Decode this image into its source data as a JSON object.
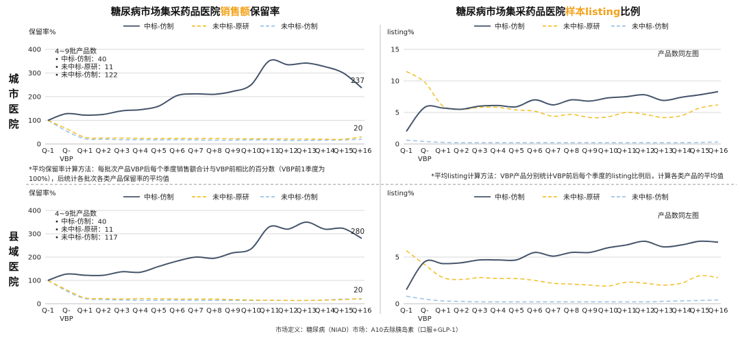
{
  "titles": {
    "left": {
      "pre": "糖尿病市场集采药品医院",
      "highlight": "销售额",
      "post": "保留率"
    },
    "right": {
      "pre": "糖尿病市场集采药品医院",
      "highlight": "样本listing",
      "post": "比例"
    }
  },
  "row_labels": {
    "top": "城市医院",
    "bottom": "县域医院"
  },
  "notes": {
    "left_line1": "*平均保留率计算方法：每批次产品VBP后每个季度销售额合计与VBP前相比的百分数（VBP前1季度为",
    "left_line2": "100%），后统计各批次各类产品保留率的平均值",
    "right": "*平均listing计算方法：VBP产品分别统计VBP前后每个季度的listing比例后，计算各类产品的平均值"
  },
  "footer": "市场定义：糖尿病（NIAD）市场：A10去除胰岛素（口服+GLP-1）",
  "colors": {
    "s1": "#44546a",
    "s2": "#f2c12e",
    "s3": "#9dc3e6",
    "grid": "#d9d9d9",
    "highlight": "#f2a21a"
  },
  "chart_data": [
    {
      "id": "top-left",
      "type": "line",
      "ylabel": "保留率%",
      "ylim": [
        0,
        400
      ],
      "yticks": [
        0,
        100,
        200,
        300,
        400
      ],
      "categories": [
        "Q-1",
        "Q-VBP",
        "Q+1",
        "Q+2",
        "Q+3",
        "Q+4",
        "Q+5",
        "Q+6",
        "Q+7",
        "Q+8",
        "Q+9",
        "Q+10",
        "Q+11",
        "Q+12",
        "Q+13",
        "Q+14",
        "Q+15",
        "Q+16"
      ],
      "tick_labels": [
        "Q-1",
        "Q-",
        "Q+1",
        "Q+2",
        "Q+3",
        "Q+4",
        "Q+5",
        "Q+6",
        "Q+7",
        "Q+8",
        "Q+9",
        "Q+10",
        "Q+11",
        "Q+12",
        "Q+13",
        "Q+14",
        "Q+15",
        "Q+16"
      ],
      "tick_labels_line2": [
        "",
        "VBP",
        "",
        "",
        "",
        "",
        "",
        "",
        "",
        "",
        "",
        "",
        "",
        "",
        "",
        "",
        "",
        ""
      ],
      "series": [
        {
          "name": "中标-仿制",
          "color": "#44546a",
          "dash": "solid",
          "values": [
            100,
            128,
            122,
            125,
            140,
            145,
            160,
            205,
            212,
            210,
            222,
            250,
            352,
            335,
            342,
            327,
            300,
            237
          ]
        },
        {
          "name": "未中标-原研",
          "color": "#f2c12e",
          "dash": "dash",
          "values": [
            100,
            65,
            28,
            25,
            25,
            24,
            23,
            24,
            23,
            23,
            22,
            22,
            22,
            21,
            21,
            20,
            20,
            30
          ]
        },
        {
          "name": "未中标-仿制",
          "color": "#9dc3e6",
          "dash": "dash",
          "values": [
            100,
            55,
            22,
            20,
            18,
            18,
            17,
            18,
            17,
            16,
            16,
            17,
            17,
            15,
            15,
            16,
            17,
            20
          ]
        }
      ],
      "end_labels": [
        "237",
        "20"
      ],
      "annotation": [
        "4~9批产品数",
        "• 中标-仿制：40",
        "• 未中标-原研：11",
        "• 未中标-仿制：122"
      ]
    },
    {
      "id": "top-right",
      "type": "line",
      "ylabel": "listing%",
      "ylim": [
        0,
        15
      ],
      "yticks": [
        0,
        5,
        10,
        15
      ],
      "categories": [
        "Q-1",
        "Q-VBP",
        "Q+1",
        "Q+2",
        "Q+3",
        "Q+4",
        "Q+5",
        "Q+6",
        "Q+7",
        "Q+8",
        "Q+9",
        "Q+10",
        "Q+11",
        "Q+12",
        "Q+13",
        "Q+14",
        "Q+15",
        "Q+16"
      ],
      "tick_labels": [
        "Q-1",
        "Q-",
        "Q+1",
        "Q+2",
        "Q+3",
        "Q+4",
        "Q+5",
        "Q+6",
        "Q+7",
        "Q+8",
        "Q+9",
        "Q+10",
        "Q+11",
        "Q+12",
        "Q+13",
        "Q+14",
        "Q+15",
        "Q+16"
      ],
      "tick_labels_line2": [
        "",
        "VBP",
        "",
        "",
        "",
        "",
        "",
        "",
        "",
        "",
        "",
        "",
        "",
        "",
        "",
        "",
        "",
        ""
      ],
      "series": [
        {
          "name": "中标-仿制",
          "color": "#44546a",
          "dash": "solid",
          "values": [
            2.0,
            5.8,
            5.7,
            5.5,
            6.0,
            6.1,
            5.9,
            7.0,
            6.2,
            7.0,
            6.8,
            7.3,
            7.5,
            7.8,
            6.9,
            7.4,
            7.8,
            8.3
          ]
        },
        {
          "name": "未中标-原研",
          "color": "#f2c12e",
          "dash": "dash",
          "values": [
            11.5,
            9.8,
            6.0,
            5.5,
            5.8,
            5.8,
            5.4,
            5.2,
            4.4,
            4.7,
            4.2,
            4.3,
            5.0,
            4.7,
            4.2,
            4.5,
            5.7,
            6.2
          ]
        },
        {
          "name": "未中标-仿制",
          "color": "#9dc3e6",
          "dash": "dash",
          "values": [
            0.6,
            0.4,
            0.25,
            0.2,
            0.2,
            0.2,
            0.2,
            0.2,
            0.2,
            0.2,
            0.2,
            0.2,
            0.2,
            0.2,
            0.2,
            0.2,
            0.25,
            0.3
          ]
        }
      ],
      "end_labels": [],
      "annotation": [
        "产品数同左图"
      ]
    },
    {
      "id": "bottom-left",
      "type": "line",
      "ylabel": "保留率%",
      "ylim": [
        0,
        400
      ],
      "yticks": [
        0,
        100,
        200,
        300,
        400
      ],
      "categories": [
        "Q-1",
        "Q-VBP",
        "Q+1",
        "Q+2",
        "Q+3",
        "Q+4",
        "Q+5",
        "Q+6",
        "Q+7",
        "Q+8",
        "Q+9",
        "Q+10",
        "Q+11",
        "Q+12",
        "Q+13",
        "Q+14",
        "Q+15",
        "Q+16"
      ],
      "tick_labels": [
        "Q-1",
        "Q-",
        "Q+1",
        "Q+2",
        "Q+3",
        "Q+4",
        "Q+5",
        "Q+6",
        "Q+7",
        "Q+8",
        "Q+9",
        "Q+10",
        "Q+11",
        "Q+12",
        "Q+13",
        "Q+14",
        "Q+15",
        "Q+16"
      ],
      "tick_labels_line2": [
        "",
        "VBP",
        "",
        "",
        "",
        "",
        "",
        "",
        "",
        "",
        "",
        "",
        "",
        "",
        "",
        "",
        "",
        ""
      ],
      "series": [
        {
          "name": "中标-仿制",
          "color": "#44546a",
          "dash": "solid",
          "values": [
            100,
            127,
            122,
            122,
            137,
            135,
            160,
            183,
            200,
            195,
            218,
            235,
            330,
            320,
            350,
            320,
            323,
            280
          ]
        },
        {
          "name": "未中标-原研",
          "color": "#f2c12e",
          "dash": "dash",
          "values": [
            100,
            60,
            25,
            22,
            20,
            22,
            21,
            20,
            20,
            20,
            18,
            16,
            15,
            14,
            14,
            15,
            18,
            22
          ]
        },
        {
          "name": "未中标-仿制",
          "color": "#9dc3e6",
          "dash": "dash",
          "values": [
            100,
            55,
            22,
            18,
            16,
            15,
            15,
            15,
            14,
            14,
            14,
            14,
            15,
            14,
            14,
            16,
            20,
            20
          ]
        }
      ],
      "end_labels": [
        "280",
        "20"
      ],
      "annotation": [
        "4~9批产品数",
        "• 中标-仿制：40",
        "• 未中标-原研：11",
        "• 未中标-仿制：117"
      ]
    },
    {
      "id": "bottom-right",
      "type": "line",
      "ylabel": "listing%",
      "ylim": [
        0,
        10
      ],
      "yticks": [
        0,
        5
      ],
      "categories": [
        "Q-1",
        "Q-VBP",
        "Q+1",
        "Q+2",
        "Q+3",
        "Q+4",
        "Q+5",
        "Q+6",
        "Q+7",
        "Q+8",
        "Q+9",
        "Q+10",
        "Q+11",
        "Q+12",
        "Q+13",
        "Q+14",
        "Q+15",
        "Q+16"
      ],
      "tick_labels": [
        "Q-1",
        "Q-",
        "Q+1",
        "Q+2",
        "Q+3",
        "Q+4",
        "Q+5",
        "Q+6",
        "Q+7",
        "Q+8",
        "Q+9",
        "Q+10",
        "Q+11",
        "Q+12",
        "Q+13",
        "Q+14",
        "Q+15",
        "Q+16"
      ],
      "tick_labels_line2": [
        "",
        "VBP",
        "",
        "",
        "",
        "",
        "",
        "",
        "",
        "",
        "",
        "",
        "",
        "",
        "",
        "",
        "",
        ""
      ],
      "series": [
        {
          "name": "中标-仿制",
          "color": "#44546a",
          "dash": "solid",
          "values": [
            1.5,
            4.5,
            4.3,
            4.4,
            4.7,
            4.7,
            4.7,
            5.5,
            5.1,
            5.5,
            5.5,
            6.0,
            6.3,
            6.7,
            6.1,
            6.3,
            6.7,
            6.6
          ]
        },
        {
          "name": "未中标-原研",
          "color": "#f2c12e",
          "dash": "dash",
          "values": [
            5.7,
            4.2,
            2.8,
            2.6,
            2.8,
            2.7,
            2.7,
            2.5,
            2.2,
            2.1,
            2.0,
            1.9,
            2.3,
            2.2,
            2.0,
            2.2,
            3.0,
            2.8
          ]
        },
        {
          "name": "未中标-仿制",
          "color": "#9dc3e6",
          "dash": "dash",
          "values": [
            0.8,
            0.5,
            0.3,
            0.25,
            0.2,
            0.2,
            0.2,
            0.2,
            0.2,
            0.2,
            0.2,
            0.2,
            0.2,
            0.2,
            0.25,
            0.3,
            0.35,
            0.4
          ]
        }
      ],
      "end_labels": [],
      "annotation": [
        "产品数同左图"
      ]
    }
  ]
}
